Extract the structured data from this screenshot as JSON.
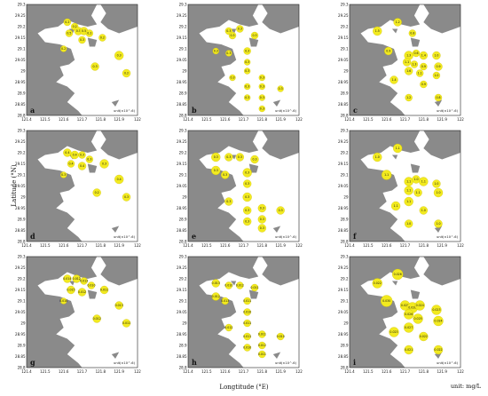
{
  "figure": {
    "y_axis_title": "Latitude (°N)",
    "x_axis_title": "Longtitude (°E)",
    "unit_note": "unit: mg/L"
  },
  "axes": {
    "x_ticks": [
      "121.4",
      "121.5",
      "121.6",
      "121.7",
      "121.8",
      "121.9",
      "122"
    ],
    "y_ticks": [
      "29.3",
      "29.25",
      "29.2",
      "29.15",
      "29.1",
      "29.05",
      "29",
      "28.95",
      "28.9",
      "28.85",
      "28.8"
    ]
  },
  "style": {
    "land": "#8a8a8a",
    "water": "#ffffff",
    "bubble": "#f2ea1f",
    "bubble_stroke": "#c9b800"
  },
  "panels": [
    {
      "id": "a",
      "unit_label": "unit(×10^-6)",
      "stations": [
        {
          "lon": 121.62,
          "lat": 29.22,
          "v": 0.4,
          "label": "0.2"
        },
        {
          "lon": 121.66,
          "lat": 29.2,
          "v": 0.4,
          "label": "0.2"
        },
        {
          "lon": 121.63,
          "lat": 29.17,
          "v": 0.4,
          "label": "0.5"
        },
        {
          "lon": 121.68,
          "lat": 29.18,
          "v": 0.5,
          "label": "0.5"
        },
        {
          "lon": 121.71,
          "lat": 29.18,
          "v": 0.5,
          "label": "0.5"
        },
        {
          "lon": 121.74,
          "lat": 29.17,
          "v": 0.4,
          "label": "0.2"
        },
        {
          "lon": 121.7,
          "lat": 29.14,
          "v": 0.4,
          "label": "0.3"
        },
        {
          "lon": 121.81,
          "lat": 29.15,
          "v": 0.4,
          "label": "0.2"
        },
        {
          "lon": 121.6,
          "lat": 29.1,
          "v": 0.3,
          "label": "0.2"
        },
        {
          "lon": 121.9,
          "lat": 29.07,
          "v": 0.6,
          "label": "0.3"
        },
        {
          "lon": 121.77,
          "lat": 29.02,
          "v": 0.5,
          "label": "0.3"
        },
        {
          "lon": 121.94,
          "lat": 28.99,
          "v": 0.5,
          "label": "0.2"
        }
      ]
    },
    {
      "id": "b",
      "unit_label": "unit(×10^-6)",
      "stations": [
        {
          "lon": 121.62,
          "lat": 29.18,
          "v": 0.4,
          "label": "0.3"
        },
        {
          "lon": 121.64,
          "lat": 29.16,
          "v": 0.4,
          "label": "0.3"
        },
        {
          "lon": 121.68,
          "lat": 29.19,
          "v": 0.4,
          "label": "0.3"
        },
        {
          "lon": 121.76,
          "lat": 29.16,
          "v": 0.4,
          "label": "0.3"
        },
        {
          "lon": 121.55,
          "lat": 29.09,
          "v": 0.3,
          "label": "0.3"
        },
        {
          "lon": 121.62,
          "lat": 29.08,
          "v": 0.3,
          "label": "0.3"
        },
        {
          "lon": 121.72,
          "lat": 29.09,
          "v": 0.4,
          "label": "0.3"
        },
        {
          "lon": 121.72,
          "lat": 29.04,
          "v": 0.3,
          "label": "0.3"
        },
        {
          "lon": 121.72,
          "lat": 29.0,
          "v": 0.3,
          "label": "0.3"
        },
        {
          "lon": 121.64,
          "lat": 28.97,
          "v": 0.3,
          "label": "0.3"
        },
        {
          "lon": 121.72,
          "lat": 28.93,
          "v": 0.3,
          "label": "0.3"
        },
        {
          "lon": 121.72,
          "lat": 28.88,
          "v": 0.3,
          "label": "0.3"
        },
        {
          "lon": 121.8,
          "lat": 28.97,
          "v": 0.3,
          "label": "0.3"
        },
        {
          "lon": 121.8,
          "lat": 28.93,
          "v": 0.3,
          "label": "0.3"
        },
        {
          "lon": 121.8,
          "lat": 28.88,
          "v": 0.3,
          "label": "0.3"
        },
        {
          "lon": 121.9,
          "lat": 28.92,
          "v": 0.3,
          "label": "0.3"
        },
        {
          "lon": 121.8,
          "lat": 28.83,
          "v": 0.3,
          "label": "0.3"
        }
      ]
    },
    {
      "id": "c",
      "unit_label": "unit(×10^-6)",
      "stations": [
        {
          "lon": 121.66,
          "lat": 29.22,
          "v": 0.5,
          "label": "1.2"
        },
        {
          "lon": 121.55,
          "lat": 29.18,
          "v": 0.6,
          "label": "1.5"
        },
        {
          "lon": 121.74,
          "lat": 29.17,
          "v": 0.4,
          "label": "0.8"
        },
        {
          "lon": 121.61,
          "lat": 29.09,
          "v": 0.5,
          "label": "0.9"
        },
        {
          "lon": 121.72,
          "lat": 29.07,
          "v": 0.6,
          "label": "1.3"
        },
        {
          "lon": 121.76,
          "lat": 29.08,
          "v": 0.4,
          "label": "0.6"
        },
        {
          "lon": 121.8,
          "lat": 29.07,
          "v": 0.5,
          "label": "1.4"
        },
        {
          "lon": 121.87,
          "lat": 29.07,
          "v": 0.5,
          "label": "1.0"
        },
        {
          "lon": 121.71,
          "lat": 29.04,
          "v": 0.5,
          "label": "1.1"
        },
        {
          "lon": 121.75,
          "lat": 29.03,
          "v": 0.4,
          "label": "1.3"
        },
        {
          "lon": 121.8,
          "lat": 29.02,
          "v": 0.4,
          "label": "0.9"
        },
        {
          "lon": 121.88,
          "lat": 29.02,
          "v": 0.5,
          "label": "0.9"
        },
        {
          "lon": 121.72,
          "lat": 29.0,
          "v": 0.5,
          "label": "1.6"
        },
        {
          "lon": 121.78,
          "lat": 28.99,
          "v": 0.4,
          "label": "1.1"
        },
        {
          "lon": 121.87,
          "lat": 28.98,
          "v": 0.4,
          "label": "1.0"
        },
        {
          "lon": 121.64,
          "lat": 28.96,
          "v": 0.5,
          "label": "1.4"
        },
        {
          "lon": 121.8,
          "lat": 28.94,
          "v": 0.4,
          "label": "0.9"
        },
        {
          "lon": 121.72,
          "lat": 28.88,
          "v": 0.4,
          "label": "1.2"
        },
        {
          "lon": 121.88,
          "lat": 28.88,
          "v": 0.4,
          "label": "0.8"
        }
      ]
    },
    {
      "id": "d",
      "unit_label": "unit(×10^-6)",
      "stations": [
        {
          "lon": 121.62,
          "lat": 29.2,
          "v": 0.5,
          "label": "0.4"
        },
        {
          "lon": 121.66,
          "lat": 29.19,
          "v": 0.5,
          "label": "0.4"
        },
        {
          "lon": 121.7,
          "lat": 29.19,
          "v": 0.4,
          "label": "0.3"
        },
        {
          "lon": 121.74,
          "lat": 29.17,
          "v": 0.4,
          "label": "0.3"
        },
        {
          "lon": 121.64,
          "lat": 29.15,
          "v": 0.4,
          "label": "0.4"
        },
        {
          "lon": 121.7,
          "lat": 29.14,
          "v": 0.5,
          "label": "0.4"
        },
        {
          "lon": 121.82,
          "lat": 29.15,
          "v": 0.6,
          "label": "0.3"
        },
        {
          "lon": 121.6,
          "lat": 29.1,
          "v": 0.3,
          "label": "0.3"
        },
        {
          "lon": 121.9,
          "lat": 29.08,
          "v": 0.6,
          "label": "0.4"
        },
        {
          "lon": 121.78,
          "lat": 29.02,
          "v": 0.5,
          "label": "0.2"
        },
        {
          "lon": 121.94,
          "lat": 29.0,
          "v": 0.5,
          "label": "0.3"
        }
      ]
    },
    {
      "id": "e",
      "unit_label": "unit(×10^-6)",
      "stations": [
        {
          "lon": 121.55,
          "lat": 29.18,
          "v": 0.6,
          "label": "0.3"
        },
        {
          "lon": 121.62,
          "lat": 29.18,
          "v": 0.5,
          "label": "0.3"
        },
        {
          "lon": 121.68,
          "lat": 29.18,
          "v": 0.5,
          "label": "0.3"
        },
        {
          "lon": 121.76,
          "lat": 29.17,
          "v": 0.5,
          "label": "0.3"
        },
        {
          "lon": 121.55,
          "lat": 29.12,
          "v": 0.6,
          "label": "0.3"
        },
        {
          "lon": 121.6,
          "lat": 29.1,
          "v": 0.5,
          "label": "0.3"
        },
        {
          "lon": 121.72,
          "lat": 29.11,
          "v": 0.6,
          "label": "0.3"
        },
        {
          "lon": 121.72,
          "lat": 29.06,
          "v": 0.5,
          "label": "0.3"
        },
        {
          "lon": 121.72,
          "lat": 29.0,
          "v": 0.6,
          "label": "0.3"
        },
        {
          "lon": 121.62,
          "lat": 28.98,
          "v": 0.5,
          "label": "0.3"
        },
        {
          "lon": 121.72,
          "lat": 28.94,
          "v": 0.5,
          "label": "0.3"
        },
        {
          "lon": 121.72,
          "lat": 28.89,
          "v": 0.5,
          "label": "0.3"
        },
        {
          "lon": 121.8,
          "lat": 28.95,
          "v": 0.5,
          "label": "0.3"
        },
        {
          "lon": 121.8,
          "lat": 28.9,
          "v": 0.5,
          "label": "0.3"
        },
        {
          "lon": 121.8,
          "lat": 28.86,
          "v": 0.5,
          "label": "0.3"
        },
        {
          "lon": 121.9,
          "lat": 28.94,
          "v": 0.5,
          "label": "0.3"
        }
      ]
    },
    {
      "id": "f",
      "unit_label": "unit(×10^-6)",
      "stations": [
        {
          "lon": 121.66,
          "lat": 29.22,
          "v": 0.6,
          "label": "1.1"
        },
        {
          "lon": 121.55,
          "lat": 29.18,
          "v": 0.6,
          "label": "1.0"
        },
        {
          "lon": 121.6,
          "lat": 29.1,
          "v": 0.7,
          "label": "1.1"
        },
        {
          "lon": 121.72,
          "lat": 29.07,
          "v": 0.6,
          "label": "1.1"
        },
        {
          "lon": 121.76,
          "lat": 29.08,
          "v": 0.5,
          "label": "1.0"
        },
        {
          "lon": 121.8,
          "lat": 29.07,
          "v": 0.6,
          "label": "1.1"
        },
        {
          "lon": 121.87,
          "lat": 29.06,
          "v": 0.5,
          "label": "1.0"
        },
        {
          "lon": 121.72,
          "lat": 29.03,
          "v": 0.6,
          "label": "1.1"
        },
        {
          "lon": 121.77,
          "lat": 29.02,
          "v": 0.5,
          "label": "1.1"
        },
        {
          "lon": 121.88,
          "lat": 29.02,
          "v": 0.6,
          "label": "1.0"
        },
        {
          "lon": 121.72,
          "lat": 28.98,
          "v": 0.6,
          "label": "1.1"
        },
        {
          "lon": 121.65,
          "lat": 28.96,
          "v": 0.6,
          "label": "1.1"
        },
        {
          "lon": 121.8,
          "lat": 28.94,
          "v": 0.5,
          "label": "1.0"
        },
        {
          "lon": 121.72,
          "lat": 28.88,
          "v": 0.5,
          "label": "1.0"
        },
        {
          "lon": 121.88,
          "lat": 28.88,
          "v": 0.5,
          "label": "1.0"
        }
      ]
    },
    {
      "id": "g",
      "unit_label": "unit(×10^-6)",
      "stations": [
        {
          "lon": 121.62,
          "lat": 29.2,
          "v": 0.5,
          "label": "0.014"
        },
        {
          "lon": 121.67,
          "lat": 29.2,
          "v": 0.5,
          "label": "0.012"
        },
        {
          "lon": 121.71,
          "lat": 29.19,
          "v": 0.4,
          "label": "0.013"
        },
        {
          "lon": 121.75,
          "lat": 29.17,
          "v": 0.4,
          "label": "0.010"
        },
        {
          "lon": 121.64,
          "lat": 29.15,
          "v": 0.5,
          "label": "0.015"
        },
        {
          "lon": 121.7,
          "lat": 29.14,
          "v": 0.5,
          "label": "0.012"
        },
        {
          "lon": 121.82,
          "lat": 29.15,
          "v": 0.5,
          "label": "0.011"
        },
        {
          "lon": 121.6,
          "lat": 29.1,
          "v": 0.3,
          "label": "0.010"
        },
        {
          "lon": 121.9,
          "lat": 29.08,
          "v": 0.5,
          "label": "0.013"
        },
        {
          "lon": 121.78,
          "lat": 29.02,
          "v": 0.5,
          "label": "0.012"
        },
        {
          "lon": 121.94,
          "lat": 29.0,
          "v": 0.5,
          "label": "0.011"
        }
      ]
    },
    {
      "id": "h",
      "unit_label": "unit(×10^-6)",
      "stations": [
        {
          "lon": 121.55,
          "lat": 29.18,
          "v": 0.5,
          "label": "0.013"
        },
        {
          "lon": 121.62,
          "lat": 29.17,
          "v": 0.4,
          "label": "0.010"
        },
        {
          "lon": 121.68,
          "lat": 29.17,
          "v": 0.4,
          "label": "0.012"
        },
        {
          "lon": 121.76,
          "lat": 29.16,
          "v": 0.4,
          "label": "0.011"
        },
        {
          "lon": 121.55,
          "lat": 29.12,
          "v": 0.5,
          "label": "0.012"
        },
        {
          "lon": 121.6,
          "lat": 29.1,
          "v": 0.4,
          "label": "0.013"
        },
        {
          "lon": 121.72,
          "lat": 29.1,
          "v": 0.4,
          "label": "0.011"
        },
        {
          "lon": 121.72,
          "lat": 29.05,
          "v": 0.4,
          "label": "0.010"
        },
        {
          "lon": 121.72,
          "lat": 29.0,
          "v": 0.4,
          "label": "0.011"
        },
        {
          "lon": 121.62,
          "lat": 28.98,
          "v": 0.4,
          "label": "0.012"
        },
        {
          "lon": 121.72,
          "lat": 28.94,
          "v": 0.4,
          "label": "0.011"
        },
        {
          "lon": 121.72,
          "lat": 28.89,
          "v": 0.4,
          "label": "0.010"
        },
        {
          "lon": 121.8,
          "lat": 28.95,
          "v": 0.4,
          "label": "0.011"
        },
        {
          "lon": 121.8,
          "lat": 28.9,
          "v": 0.4,
          "label": "0.012"
        },
        {
          "lon": 121.8,
          "lat": 28.86,
          "v": 0.4,
          "label": "0.011"
        },
        {
          "lon": 121.9,
          "lat": 28.94,
          "v": 0.4,
          "label": "0.010"
        }
      ]
    },
    {
      "id": "i",
      "unit_label": "unit(×10^-6)",
      "stations": [
        {
          "lon": 121.66,
          "lat": 29.22,
          "v": 0.8,
          "label": "0.026"
        },
        {
          "lon": 121.55,
          "lat": 29.18,
          "v": 0.7,
          "label": "0.022"
        },
        {
          "lon": 121.6,
          "lat": 29.1,
          "v": 0.9,
          "label": "0.030"
        },
        {
          "lon": 121.7,
          "lat": 29.08,
          "v": 0.7,
          "label": "0.025"
        },
        {
          "lon": 121.74,
          "lat": 29.07,
          "v": 0.8,
          "label": "0.028"
        },
        {
          "lon": 121.78,
          "lat": 29.08,
          "v": 0.7,
          "label": "0.024"
        },
        {
          "lon": 121.87,
          "lat": 29.06,
          "v": 0.7,
          "label": "0.023"
        },
        {
          "lon": 121.72,
          "lat": 29.04,
          "v": 0.7,
          "label": "0.026"
        },
        {
          "lon": 121.77,
          "lat": 29.02,
          "v": 0.7,
          "label": "0.025"
        },
        {
          "lon": 121.88,
          "lat": 29.01,
          "v": 0.7,
          "label": "0.024"
        },
        {
          "lon": 121.72,
          "lat": 28.98,
          "v": 0.7,
          "label": "0.027"
        },
        {
          "lon": 121.64,
          "lat": 28.96,
          "v": 0.7,
          "label": "0.023"
        },
        {
          "lon": 121.8,
          "lat": 28.94,
          "v": 0.6,
          "label": "0.022"
        },
        {
          "lon": 121.72,
          "lat": 28.88,
          "v": 0.6,
          "label": "0.021"
        },
        {
          "lon": 121.88,
          "lat": 28.88,
          "v": 0.6,
          "label": "0.022"
        }
      ]
    }
  ]
}
